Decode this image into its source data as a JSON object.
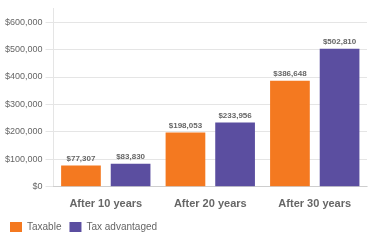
{
  "chart_data": {
    "type": "bar",
    "categories": [
      "After 10 years",
      "After 20 years",
      "After 30 years"
    ],
    "series": [
      {
        "name": "Taxable",
        "color": "#F47920",
        "values": [
          77307,
          198053,
          386648
        ],
        "value_labels": [
          "$77,307",
          "$198,053",
          "$386,648"
        ]
      },
      {
        "name": "Tax advantaged",
        "color": "#5B4EA0",
        "values": [
          83830,
          233956,
          502810
        ],
        "value_labels": [
          "$83,830",
          "$233,956",
          "$502,810"
        ]
      }
    ],
    "ylim": [
      0,
      650000
    ],
    "yticks": [
      {
        "value": 0,
        "label": "$0"
      },
      {
        "value": 100000,
        "label": "$100,000"
      },
      {
        "value": 200000,
        "label": "$200,000"
      },
      {
        "value": 300000,
        "label": "$300,000"
      },
      {
        "value": 400000,
        "label": "$400,000"
      },
      {
        "value": 500000,
        "label": "$500,000"
      },
      {
        "value": 600000,
        "label": "$600,000"
      }
    ],
    "grid": true,
    "legend": "bottom",
    "data_labels": true
  }
}
